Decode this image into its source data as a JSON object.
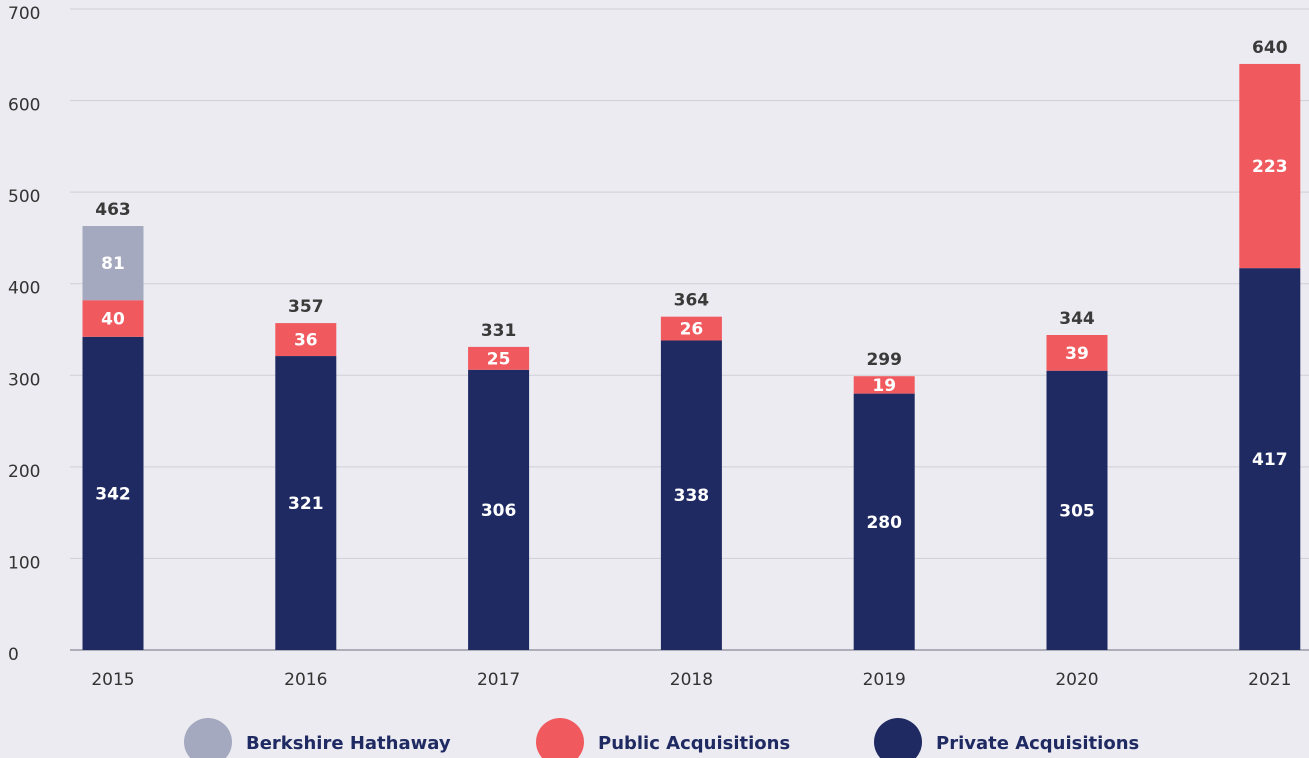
{
  "chart_data": {
    "type": "bar",
    "stacked": true,
    "categories": [
      "2015",
      "2016",
      "2017",
      "2018",
      "2019",
      "2020",
      "2021"
    ],
    "series": [
      {
        "name": "Private Acquisitions",
        "color": "#1f2a63",
        "values": [
          342,
          321,
          306,
          338,
          280,
          305,
          417
        ]
      },
      {
        "name": "Public Acquisitions",
        "color": "#f05a5f",
        "values": [
          40,
          36,
          25,
          26,
          19,
          39,
          223
        ]
      },
      {
        "name": "Berkshire Hathaway",
        "color": "#a4a9c0",
        "values": [
          81,
          null,
          null,
          null,
          null,
          null,
          null
        ]
      }
    ],
    "totals": [
      463,
      357,
      331,
      364,
      299,
      344,
      640
    ],
    "ylim": [
      0,
      700
    ],
    "yticks": [
      0,
      100,
      200,
      300,
      400,
      500,
      600,
      700
    ],
    "grid": true,
    "legend": "bottom"
  }
}
